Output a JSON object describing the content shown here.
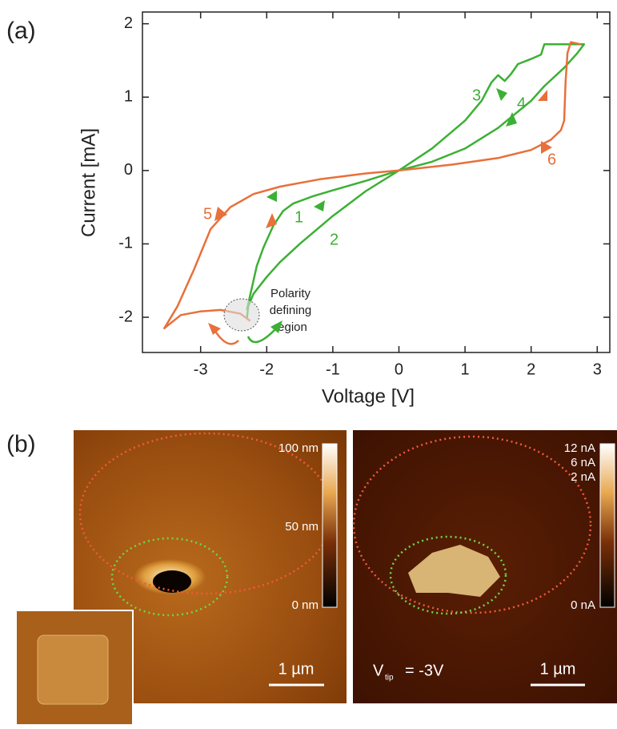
{
  "chart_data": {
    "type": "line",
    "panel_label": "(a)",
    "x_label": "Voltage [V]",
    "y_label": "Current [mA]",
    "xlim": [
      -3.88,
      3.19
    ],
    "ylim": [
      -2.48,
      2.16
    ],
    "xticks": [
      -3,
      -2,
      -1,
      0,
      1,
      2,
      3
    ],
    "yticks": [
      -2,
      -1,
      0,
      1,
      2
    ],
    "series": [
      {
        "color": "#3cb035",
        "x": [
          -2.3,
          -2.25,
          -2.15,
          -2.05,
          -1.9,
          -1.75,
          -1.6,
          -1.3,
          -1.0,
          -0.5,
          0,
          0.5,
          1.0,
          1.25,
          1.4,
          1.5,
          1.6,
          1.7,
          1.8,
          2.0,
          2.15,
          2.2,
          2.5,
          2.8,
          2.7,
          2.5,
          2.2,
          2.0,
          1.5,
          1.0,
          0.5,
          0,
          -0.5,
          -1.0,
          -1.5,
          -1.8,
          -2.0,
          -2.2,
          -2.28,
          -2.3
        ],
        "values": [
          -1.9,
          -1.7,
          -1.3,
          -1.05,
          -0.75,
          -0.55,
          -0.45,
          -0.35,
          -0.27,
          -0.14,
          0,
          0.3,
          0.68,
          0.95,
          1.2,
          1.3,
          1.22,
          1.32,
          1.45,
          1.52,
          1.58,
          1.72,
          1.72,
          1.72,
          1.6,
          1.4,
          1.15,
          0.95,
          0.58,
          0.3,
          0.12,
          0,
          -0.28,
          -0.62,
          -1.0,
          -1.25,
          -1.45,
          -1.68,
          -1.85,
          -2.02
        ]
      },
      {
        "color": "#e8703a",
        "x": [
          -2.25,
          -2.4,
          -2.7,
          -3.0,
          -3.3,
          -3.55,
          -3.35,
          -3.1,
          -2.85,
          -2.55,
          -2.2,
          -1.8,
          -1.2,
          -0.5,
          0,
          0.8,
          1.5,
          2.0,
          2.3,
          2.45,
          2.5,
          2.52,
          2.55,
          2.6,
          2.75
        ],
        "values": [
          -2.05,
          -1.95,
          -1.9,
          -1.92,
          -1.97,
          -2.15,
          -1.85,
          -1.35,
          -0.8,
          -0.5,
          -0.32,
          -0.22,
          -0.12,
          -0.04,
          0,
          0.08,
          0.17,
          0.28,
          0.42,
          0.55,
          0.68,
          1.2,
          1.6,
          1.75,
          1.72
        ]
      }
    ],
    "annotations": [
      "1",
      "2",
      "3",
      "4",
      "5",
      "6",
      "Polarity",
      "defining",
      "region"
    ]
  },
  "panel_b": {
    "panel_label": "(b)",
    "topography_scale": [
      "100 nm",
      "50 nm",
      "0 nm"
    ],
    "current_scale": [
      "12 nA",
      "6 nA",
      "2 nA",
      "0 nA"
    ],
    "scale_bars": [
      "1 µm",
      "1 µm"
    ],
    "tip_voltage": [
      "V",
      "tip",
      "= -3V"
    ]
  }
}
